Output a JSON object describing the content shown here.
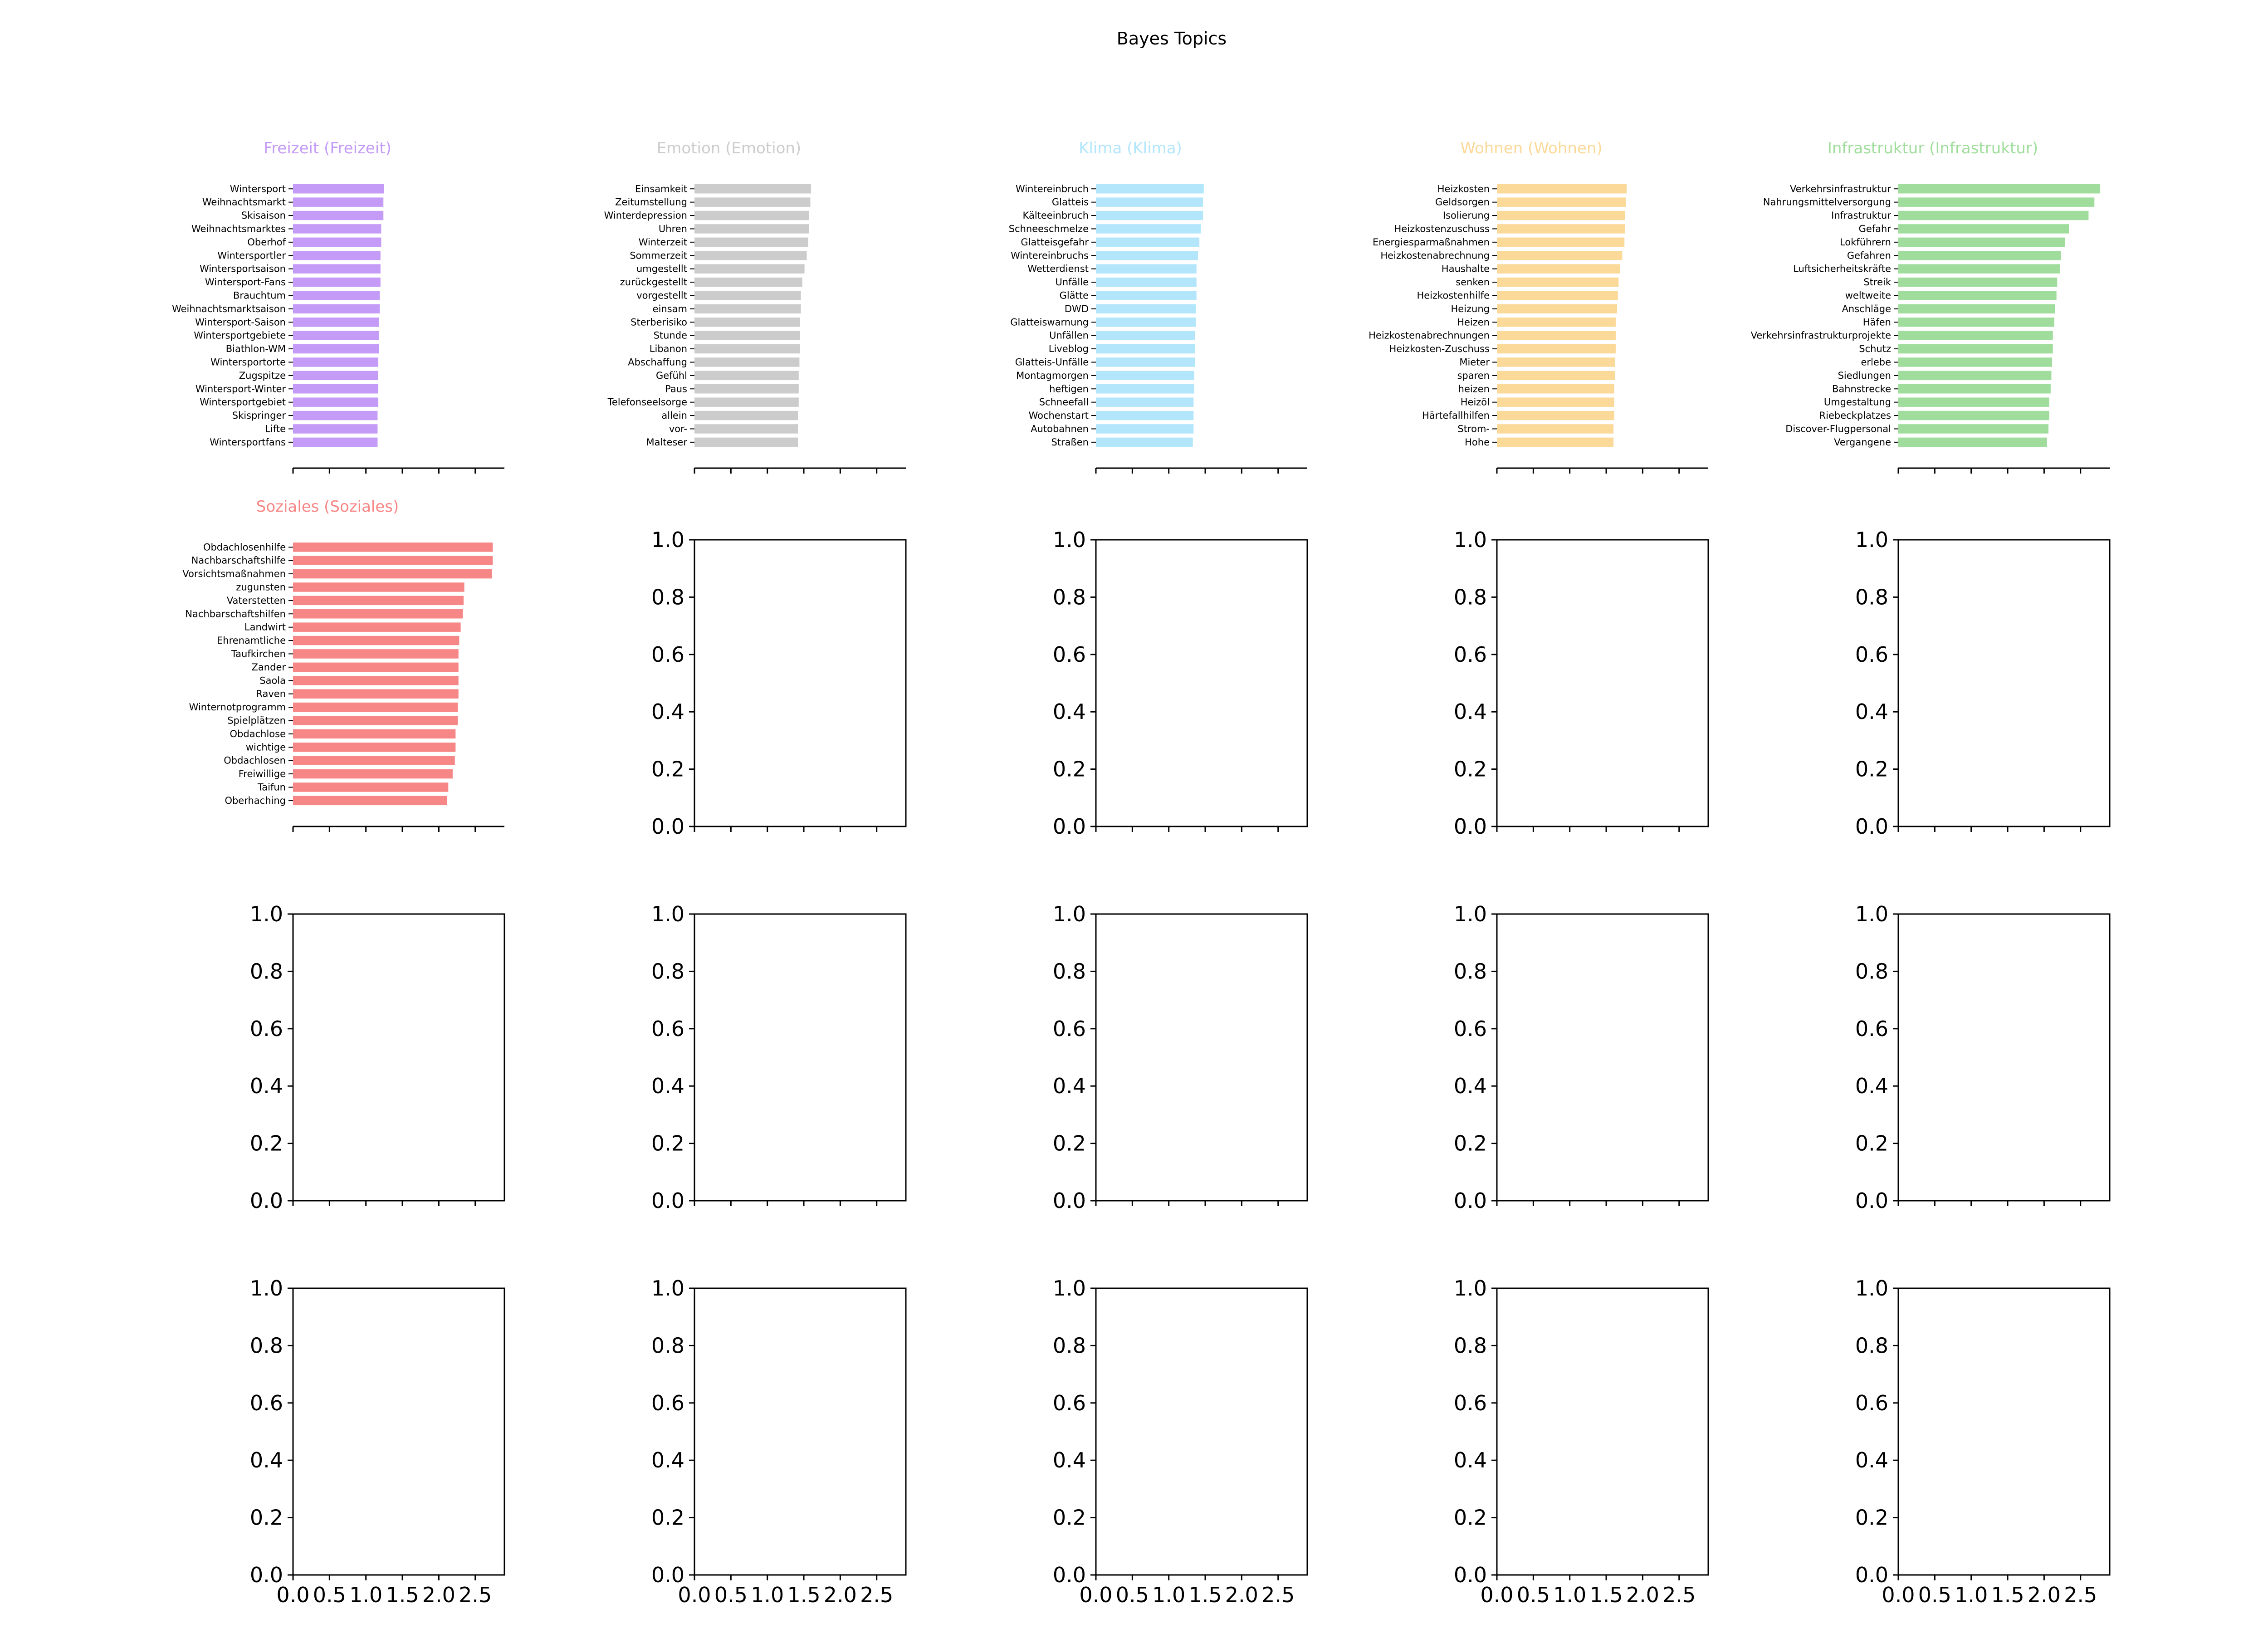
{
  "chart_data": {
    "type": "bar",
    "title": "Bayes Topics",
    "grid": false,
    "orientation": "horizontal",
    "layout": {
      "rows": 4,
      "cols": 5
    },
    "xlim": [
      0,
      2.9
    ],
    "x_ticks": [
      0.0,
      0.5,
      1.0,
      1.5,
      2.0,
      2.5
    ],
    "x_tick_labels": [
      "0.0",
      "0.5",
      "1.0",
      "1.5",
      "2.0",
      "2.5"
    ],
    "empty_y_ticks": [
      0.0,
      0.2,
      0.4,
      0.6,
      0.8,
      1.0
    ],
    "empty_y_tick_labels": [
      "0.0",
      "0.2",
      "0.4",
      "0.6",
      "0.8",
      "1.0"
    ],
    "panels": [
      {
        "title": "Freizeit (Freizeit)",
        "color": "#c49bf7",
        "categories": [
          "Wintersport",
          "Weihnachtsmarkt",
          "Skisaison",
          "Weihnachtsmarktes",
          "Oberhof",
          "Wintersportler",
          "Wintersportsaison",
          "Wintersport-Fans",
          "Brauchtum",
          "Weihnachtsmarktsaison",
          "Wintersport-Saison",
          "Wintersportgebiete",
          "Biathlon-WM",
          "Wintersportorte",
          "Zugspitze",
          "Wintersport-Winter",
          "Wintersportgebiet",
          "Skispringer",
          "Lifte",
          "Wintersportfans"
        ],
        "values": [
          1.25,
          1.24,
          1.24,
          1.21,
          1.21,
          1.2,
          1.2,
          1.2,
          1.19,
          1.19,
          1.18,
          1.18,
          1.18,
          1.17,
          1.17,
          1.17,
          1.17,
          1.16,
          1.16,
          1.16
        ]
      },
      {
        "title": "Emotion (Emotion)",
        "color": "#cccccc",
        "categories": [
          "Einsamkeit",
          "Zeitumstellung",
          "Winterdepression",
          "Uhren",
          "Winterzeit",
          "Sommerzeit",
          "umgestellt",
          "zurückgestellt",
          "vorgestellt",
          "einsam",
          "Sterberisiko",
          "Stunde",
          "Libanon",
          "Abschaffung",
          "Gefühl",
          "Paus",
          "Telefonseelsorge",
          "allein",
          "vor-",
          "Malteser"
        ],
        "values": [
          1.6,
          1.59,
          1.57,
          1.57,
          1.56,
          1.54,
          1.51,
          1.48,
          1.46,
          1.46,
          1.45,
          1.45,
          1.45,
          1.44,
          1.43,
          1.43,
          1.43,
          1.42,
          1.42,
          1.42
        ]
      },
      {
        "title": "Klima (Klima)",
        "color": "#b3e6fb",
        "categories": [
          "Wintereinbruch",
          "Glatteis",
          "Kälteeinbruch",
          "Schneeschmelze",
          "Glatteisgefahr",
          "Wintereinbruchs",
          "Wetterdienst",
          "Unfälle",
          "Glätte",
          "DWD",
          "Glatteiswarnung",
          "Unfällen",
          "Liveblog",
          "Glatteis-Unfälle",
          "Montagmorgen",
          "heftigen",
          "Schneefall",
          "Wochenstart",
          "Autobahnen",
          "Straßen"
        ],
        "values": [
          1.48,
          1.47,
          1.47,
          1.44,
          1.42,
          1.4,
          1.38,
          1.38,
          1.38,
          1.37,
          1.37,
          1.36,
          1.36,
          1.36,
          1.35,
          1.35,
          1.34,
          1.34,
          1.34,
          1.33
        ]
      },
      {
        "title": "Wohnen (Wohnen)",
        "color": "#fbd999",
        "categories": [
          "Heizkosten",
          "Geldsorgen",
          "Isolierung",
          "Heizkostenzuschuss",
          "Energiesparmaßnahmen",
          "Heizkostenabrechnung",
          "Haushalte",
          "senken",
          "Heizkostenhilfe",
          "Heizung",
          "Heizen",
          "Heizkostenabrechnungen",
          "Heizkosten-Zuschuss",
          "Mieter",
          "sparen",
          "heizen",
          "Heizöl",
          "Härtefallhilfen",
          "Strom-",
          "Hohe"
        ],
        "values": [
          1.78,
          1.77,
          1.76,
          1.76,
          1.75,
          1.72,
          1.69,
          1.67,
          1.66,
          1.65,
          1.63,
          1.63,
          1.63,
          1.62,
          1.62,
          1.61,
          1.61,
          1.61,
          1.6,
          1.6
        ]
      },
      {
        "title": "Infrastruktur (Infrastruktur)",
        "color": "#a0dd9c",
        "categories": [
          "Verkehrsinfrastruktur",
          "Nahrungsmittelversorgung",
          "Infrastruktur",
          "Gefahr",
          "Lokführern",
          "Gefahren",
          "Luftsicherheitskräfte",
          "Streik",
          "weltweite",
          "Anschläge",
          "Häfen",
          "Verkehrsinfrastrukturprojekte",
          "Schutz",
          "erlebe",
          "Siedlungen",
          "Bahnstrecke",
          "Umgestaltung",
          "Riebeckplatzes",
          "Discover-Flugpersonal",
          "Vergangene"
        ],
        "values": [
          2.77,
          2.69,
          2.61,
          2.34,
          2.29,
          2.23,
          2.22,
          2.18,
          2.17,
          2.15,
          2.14,
          2.12,
          2.12,
          2.11,
          2.1,
          2.09,
          2.07,
          2.07,
          2.06,
          2.04
        ]
      },
      {
        "title": "Soziales (Soziales)",
        "color": "#f78787",
        "categories": [
          "Obdachlosenhilfe",
          "Nachbarschaftshilfe",
          "Vorsichtsmaßnahmen",
          "zugunsten",
          "Vaterstetten",
          "Nachbarschaftshilfen",
          "Landwirt",
          "Ehrenamtliche",
          "Taufkirchen",
          "Zander",
          "Saola",
          "Raven",
          "Winternotprogramm",
          "Spielplätzen",
          "Obdachlose",
          "wichtige",
          "Obdachlosen",
          "Freiwillige",
          "Taifun",
          "Oberhaching"
        ],
        "values": [
          2.74,
          2.74,
          2.73,
          2.35,
          2.34,
          2.33,
          2.3,
          2.28,
          2.27,
          2.27,
          2.27,
          2.27,
          2.26,
          2.26,
          2.23,
          2.23,
          2.22,
          2.19,
          2.13,
          2.11
        ]
      }
    ],
    "empty_panels": 14
  }
}
